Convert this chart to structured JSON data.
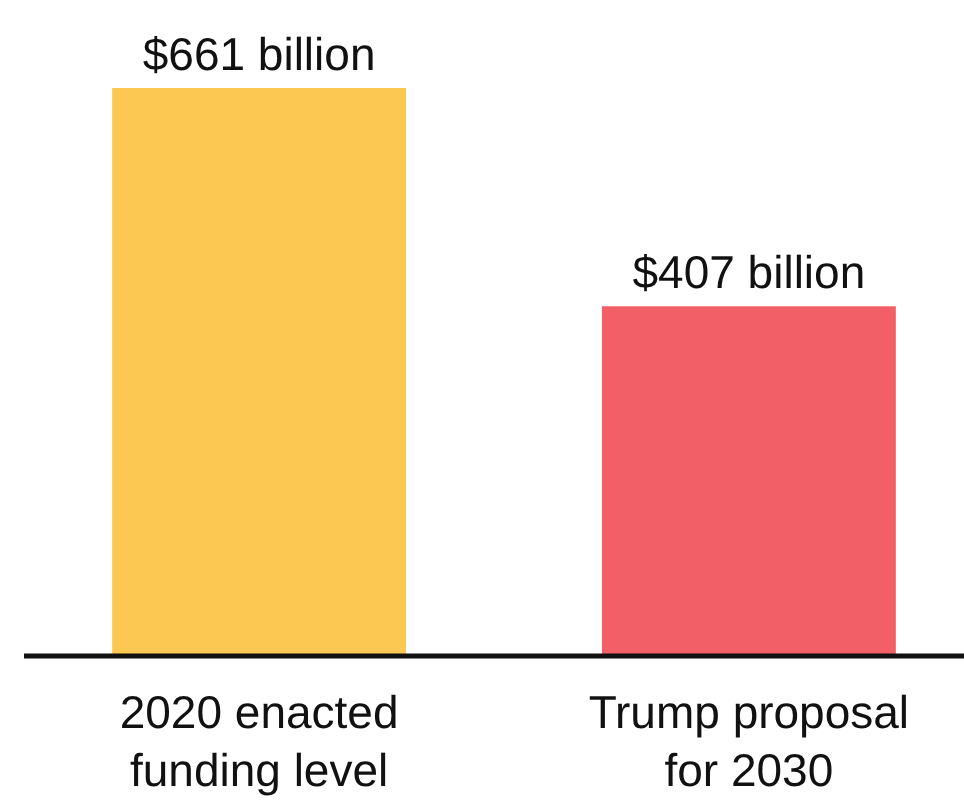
{
  "chart_data": {
    "type": "bar",
    "categories": [
      "2020 enacted funding level",
      "Trump proposal for 2030"
    ],
    "values": [
      661,
      407
    ],
    "colors": [
      "#fdc851",
      "#f25f66"
    ],
    "value_labels": [
      "$661 billion",
      "$407 billion"
    ]
  }
}
